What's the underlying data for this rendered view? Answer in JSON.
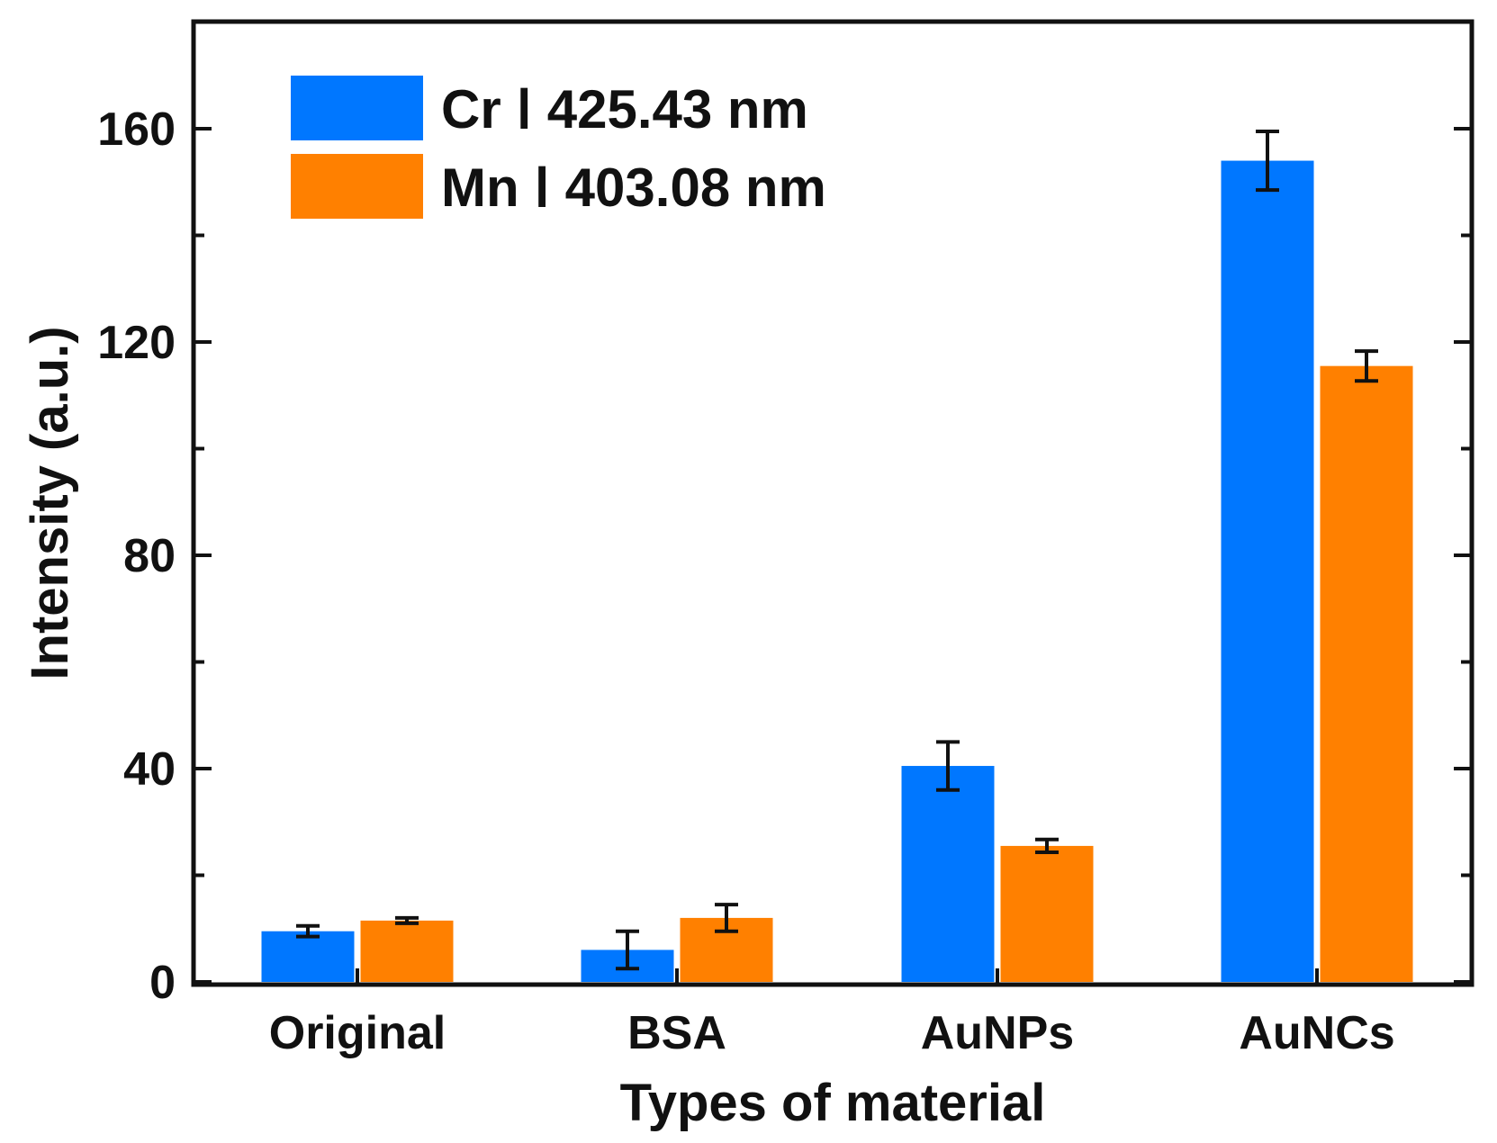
{
  "chart_data": {
    "type": "bar",
    "title": "",
    "xlabel": "Types of material",
    "ylabel": "Intensity (a.u.)",
    "ylim": [
      0,
      178
    ],
    "yticks": [
      0,
      40,
      80,
      120,
      160
    ],
    "categories": [
      "Original",
      "BSA",
      "AuNPs",
      "AuNCs"
    ],
    "series": [
      {
        "name": "Cr  Ⅰ  425.43 nm",
        "color": "#0077ff",
        "values": [
          9.5,
          6,
          40.5,
          154
        ],
        "errors": [
          1,
          3.5,
          4.5,
          5.5
        ]
      },
      {
        "name": "Mn  Ⅰ  403.08 nm",
        "color": "#ff8000",
        "values": [
          11.5,
          12,
          25.5,
          115.5
        ],
        "errors": [
          0.5,
          2.5,
          1.2,
          2.8
        ]
      }
    ],
    "legend": "top-left",
    "grid": false
  }
}
